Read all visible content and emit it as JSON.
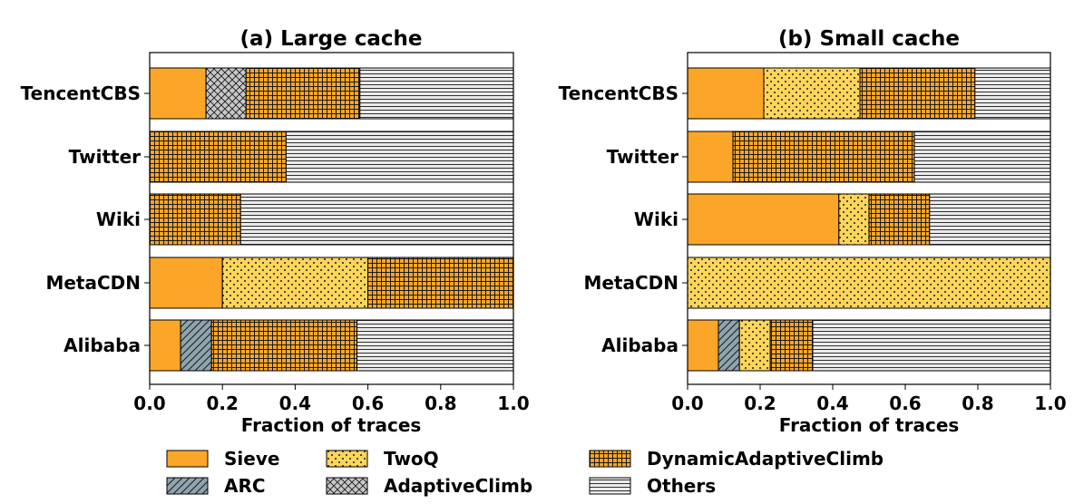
{
  "colors": {
    "Sieve": "#fca629",
    "ARC": "#8fa4ae",
    "TwoQ": "#fdd55b",
    "AdaptiveClimb": "#c8c8c8",
    "DynamicAdaptiveClimb": "#fca629",
    "Others": "#ebebeb"
  },
  "chart_data": [
    {
      "type": "bar",
      "orientation": "horizontal",
      "stacked": true,
      "title": "(a) Large cache",
      "xlabel": "Fraction of traces",
      "ylabel": "",
      "xlim": [
        0,
        1
      ],
      "xticks": [
        "0.0",
        "0.2",
        "0.4",
        "0.6",
        "0.8",
        "1.0"
      ],
      "categories": [
        "TencentCBS",
        "Twitter",
        "Wiki",
        "MetaCDN",
        "Alibaba"
      ],
      "series": [
        {
          "name": "Sieve",
          "values": [
            0.155,
            0.0,
            0.0,
            0.2,
            0.085
          ]
        },
        {
          "name": "ARC",
          "values": [
            0.0,
            0.0,
            0.0,
            0.0,
            0.085
          ]
        },
        {
          "name": "TwoQ",
          "values": [
            0.0,
            0.0,
            0.0,
            0.4,
            0.0
          ]
        },
        {
          "name": "AdaptiveClimb",
          "values": [
            0.11,
            0.0,
            0.0,
            0.0,
            0.0
          ]
        },
        {
          "name": "DynamicAdaptiveClimb",
          "values": [
            0.313,
            0.375,
            0.25,
            0.4,
            0.4
          ]
        },
        {
          "name": "Others",
          "values": [
            0.422,
            0.625,
            0.75,
            0.0,
            0.43
          ]
        }
      ]
    },
    {
      "type": "bar",
      "orientation": "horizontal",
      "stacked": true,
      "title": "(b) Small cache",
      "xlabel": "Fraction of traces",
      "ylabel": "",
      "xlim": [
        0,
        1
      ],
      "xticks": [
        "0.0",
        "0.2",
        "0.4",
        "0.6",
        "0.8",
        "1.0"
      ],
      "categories": [
        "TencentCBS",
        "Twitter",
        "Wiki",
        "MetaCDN",
        "Alibaba"
      ],
      "series": [
        {
          "name": "Sieve",
          "values": [
            0.21,
            0.125,
            0.417,
            0.0,
            0.085
          ]
        },
        {
          "name": "ARC",
          "values": [
            0.0,
            0.0,
            0.0,
            0.0,
            0.058
          ]
        },
        {
          "name": "TwoQ",
          "values": [
            0.265,
            0.0,
            0.083,
            1.0,
            0.085
          ]
        },
        {
          "name": "AdaptiveClimb",
          "values": [
            0.0,
            0.0,
            0.0,
            0.0,
            0.0
          ]
        },
        {
          "name": "DynamicAdaptiveClimb",
          "values": [
            0.317,
            0.5,
            0.167,
            0.0,
            0.117
          ]
        },
        {
          "name": "Others",
          "values": [
            0.208,
            0.375,
            0.333,
            0.0,
            0.655
          ]
        }
      ]
    }
  ],
  "legend": {
    "position": "bottom",
    "entries": [
      "Sieve",
      "ARC",
      "TwoQ",
      "AdaptiveClimb",
      "DynamicAdaptiveClimb",
      "Others"
    ]
  }
}
